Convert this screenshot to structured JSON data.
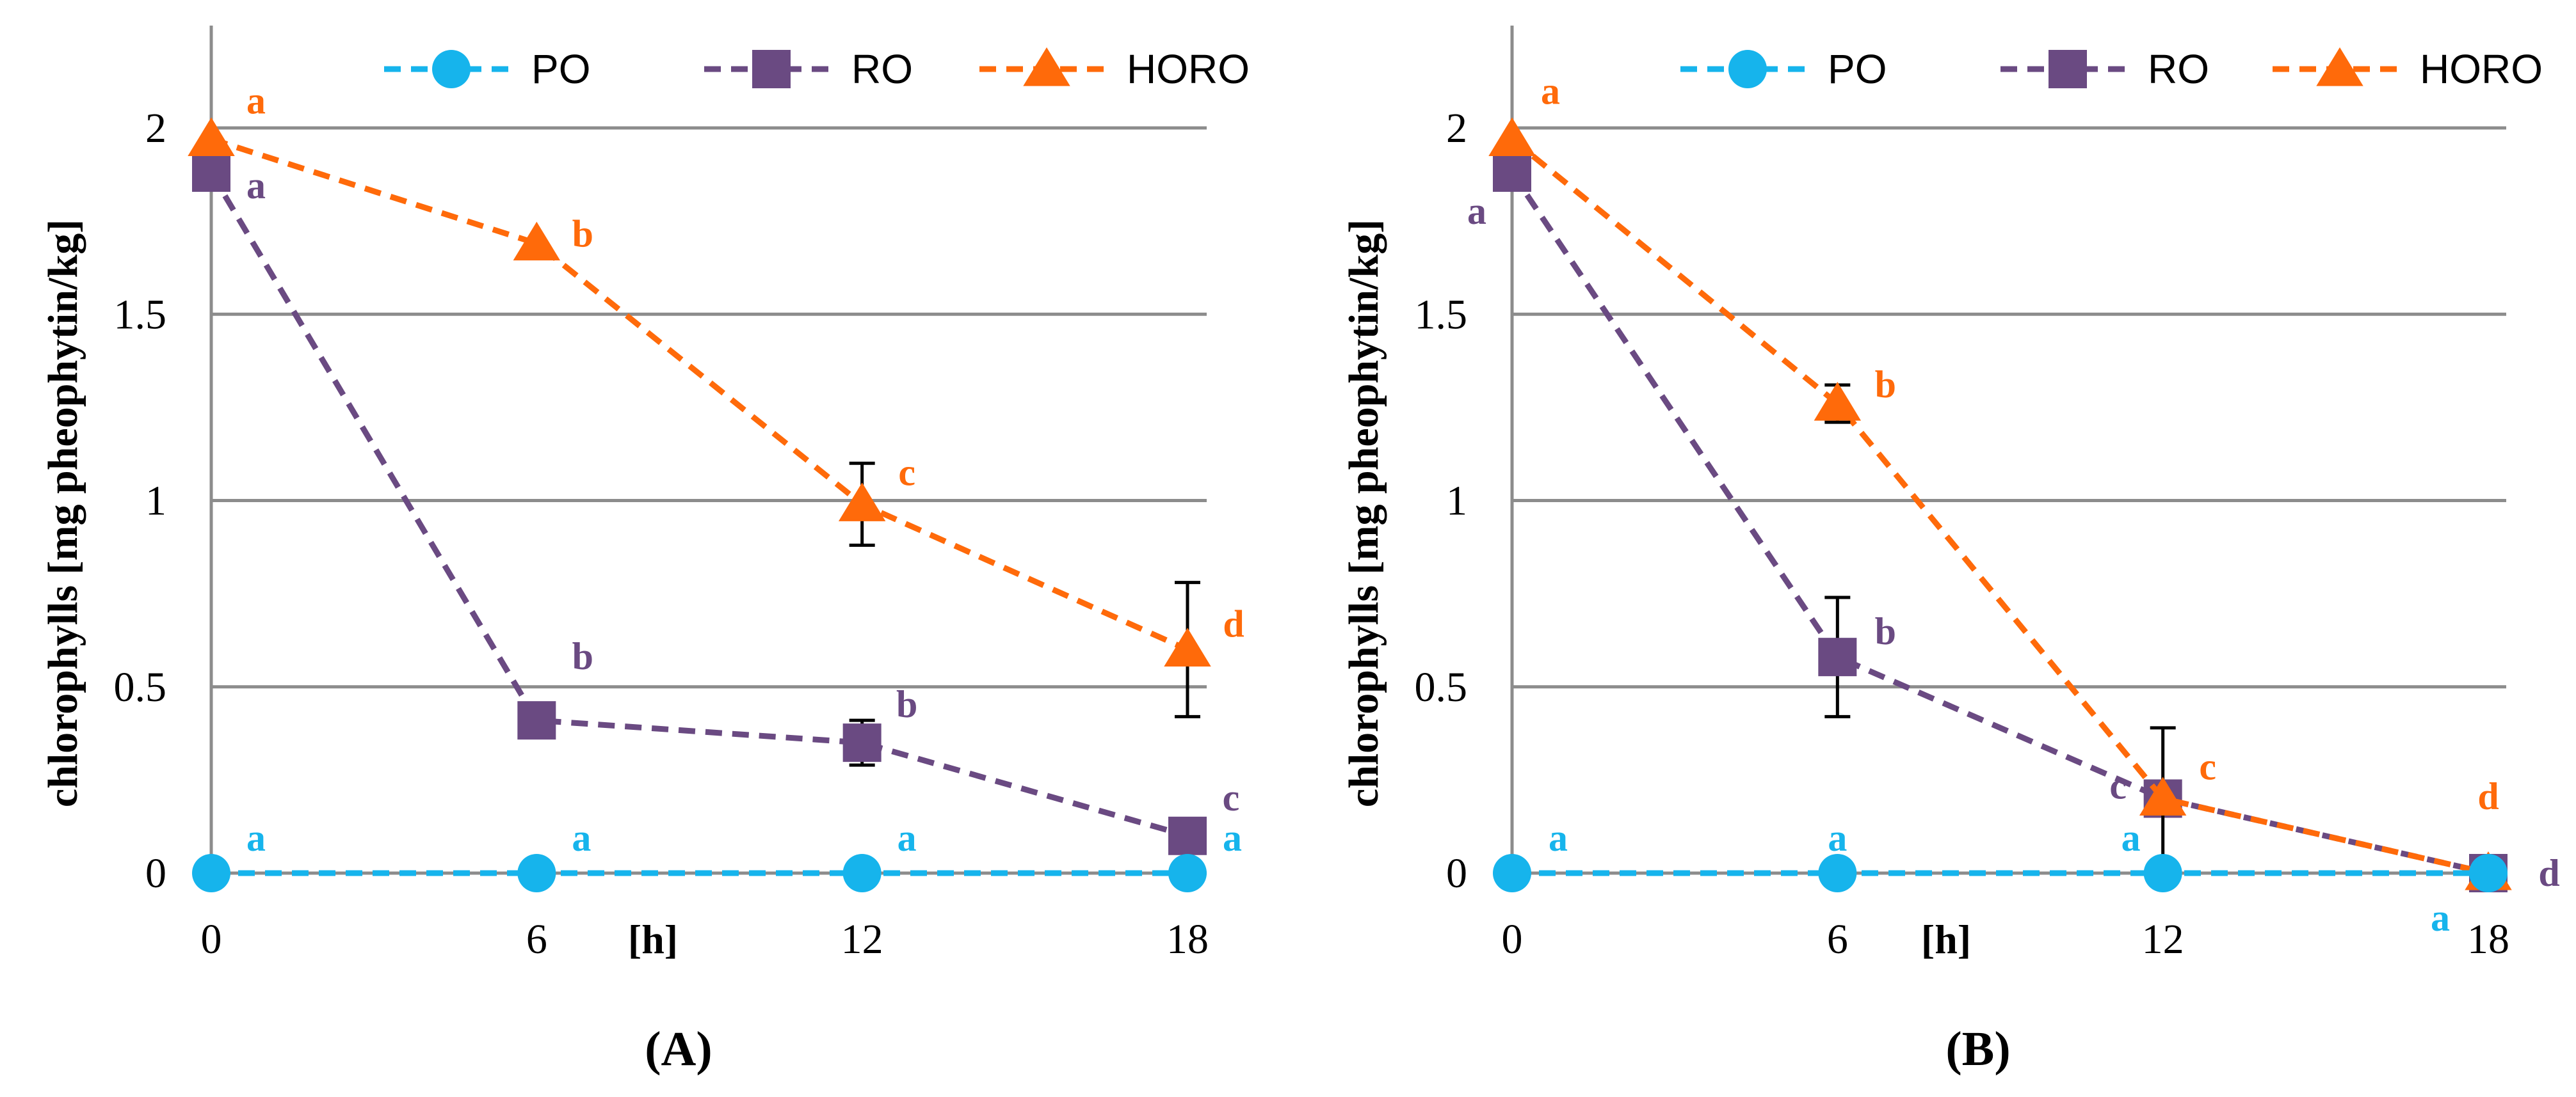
{
  "chart_data": [
    {
      "type": "line",
      "panel_label": "(A)",
      "ylabel": "chlorophylls [mg pheophytin/kg]",
      "xunit": "[h]",
      "x": [
        0,
        6,
        12,
        18
      ],
      "x_tick_labels": [
        "0",
        "6",
        "12",
        "18"
      ],
      "ylim": [
        0,
        2.3
      ],
      "y_ticks": [
        0,
        0.5,
        1,
        1.5,
        2
      ],
      "y_tick_labels": [
        "0",
        "0.5",
        "1",
        "1.5",
        "2"
      ],
      "grid": true,
      "legend_position": "top",
      "series": [
        {
          "name": "PO",
          "color": "#16b4ec",
          "marker": "circle",
          "values": [
            0,
            0,
            0,
            0
          ],
          "errors": [
            0,
            0,
            0,
            0
          ],
          "letters": [
            "a",
            "a",
            "a",
            "a"
          ]
        },
        {
          "name": "RO",
          "color": "#6a4a82",
          "marker": "square",
          "values": [
            1.88,
            0.41,
            0.35,
            0.1
          ],
          "errors": [
            0,
            0,
            0.06,
            0
          ],
          "letters": [
            "a",
            "b",
            "b",
            "c"
          ]
        },
        {
          "name": "HORO",
          "color": "#ff6a0a",
          "marker": "triangle",
          "values": [
            1.97,
            1.69,
            0.99,
            0.6
          ],
          "errors": [
            0,
            0,
            0.11,
            0.18
          ],
          "letters": [
            "a",
            "b",
            "c",
            "d"
          ]
        }
      ]
    },
    {
      "type": "line",
      "panel_label": "(B)",
      "ylabel": "chlorophylls [mg pheophytin/kg]",
      "xunit": "[h]",
      "x": [
        0,
        6,
        12,
        18
      ],
      "x_tick_labels": [
        "0",
        "6",
        "12",
        "18"
      ],
      "ylim": [
        0,
        2.3
      ],
      "y_ticks": [
        0,
        0.5,
        1,
        1.5,
        2
      ],
      "y_tick_labels": [
        "0",
        "0.5",
        "1",
        "1.5",
        "2"
      ],
      "grid": true,
      "legend_position": "top",
      "series": [
        {
          "name": "PO",
          "color": "#16b4ec",
          "marker": "circle",
          "values": [
            0,
            0,
            0,
            0
          ],
          "errors": [
            0,
            0,
            0,
            0
          ],
          "letters": [
            "a",
            "a",
            "a",
            "a"
          ]
        },
        {
          "name": "RO",
          "color": "#6a4a82",
          "marker": "square",
          "values": [
            1.88,
            0.58,
            0.2,
            0
          ],
          "errors": [
            0,
            0.16,
            0,
            0
          ],
          "letters": [
            "a",
            "b",
            "c",
            "d"
          ]
        },
        {
          "name": "HORO",
          "color": "#ff6a0a",
          "marker": "triangle",
          "values": [
            1.97,
            1.26,
            0.2,
            0
          ],
          "errors": [
            0,
            0.05,
            0.19,
            0
          ],
          "letters": [
            "a",
            "b",
            "c",
            "d"
          ]
        }
      ]
    }
  ]
}
